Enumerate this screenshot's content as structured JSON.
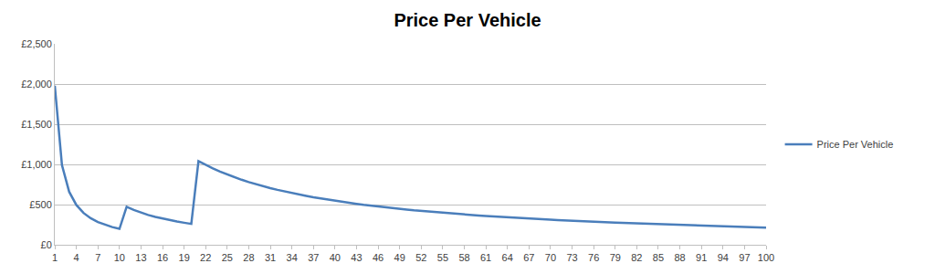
{
  "chart_data": {
    "type": "line",
    "title": "Price Per Vehicle",
    "categories": [
      "1",
      null,
      null,
      "4",
      null,
      null,
      "7",
      null,
      null,
      "10",
      null,
      null,
      "13",
      null,
      null,
      "16",
      null,
      null,
      "19",
      null,
      null,
      "22",
      null,
      null,
      "25",
      null,
      null,
      "28",
      null,
      null,
      "31",
      null,
      null,
      "34",
      null,
      null,
      "37",
      null,
      null,
      "40",
      null,
      null,
      "43",
      null,
      null,
      "46",
      null,
      null,
      "49",
      null,
      null,
      "52",
      null,
      null,
      "55",
      null,
      null,
      "58",
      null,
      null,
      "61",
      null,
      null,
      "64",
      null,
      null,
      "67",
      null,
      null,
      "70",
      null,
      null,
      "73",
      null,
      null,
      "76",
      null,
      null,
      "79",
      null,
      null,
      "82",
      null,
      null,
      "85",
      null,
      null,
      "88",
      null,
      null,
      "91",
      null,
      null,
      "94",
      null,
      null,
      "97",
      null,
      null,
      "100"
    ],
    "series": [
      {
        "name": "Price Per Vehicle",
        "color": "#4a7ebb",
        "values": [
          1980,
          990,
          660,
          495,
          396,
          330,
          283,
          248,
          220,
          198,
          473,
          433,
          400,
          371,
          347,
          325,
          306,
          289,
          274,
          260,
          1040,
          993,
          950,
          910,
          874,
          840,
          809,
          780,
          753,
          728,
          705,
          683,
          662,
          642,
          624,
          607,
          590,
          575,
          560,
          546,
          533,
          520,
          508,
          496,
          485,
          475,
          465,
          455,
          446,
          437,
          428,
          420,
          412,
          404,
          397,
          390,
          383,
          377,
          370,
          364,
          358,
          352,
          347,
          341,
          336,
          331,
          326,
          321,
          317,
          312,
          308,
          303,
          299,
          295,
          291,
          287,
          284,
          280,
          276,
          273,
          270,
          266,
          263,
          260,
          257,
          254,
          251,
          248,
          245,
          243,
          240,
          237,
          235,
          232,
          230,
          228,
          225,
          223,
          221,
          212
        ]
      }
    ],
    "ylim": [
      0,
      2500
    ],
    "yticks": [
      {
        "value": 0,
        "label": "£0"
      },
      {
        "value": 500,
        "label": "£500"
      },
      {
        "value": 1000,
        "label": "£1,000"
      },
      {
        "value": 1500,
        "label": "£1,500"
      },
      {
        "value": 2000,
        "label": "£2,000"
      },
      {
        "value": 2500,
        "label": "£2,500"
      }
    ],
    "grid": true,
    "legend": "right"
  }
}
